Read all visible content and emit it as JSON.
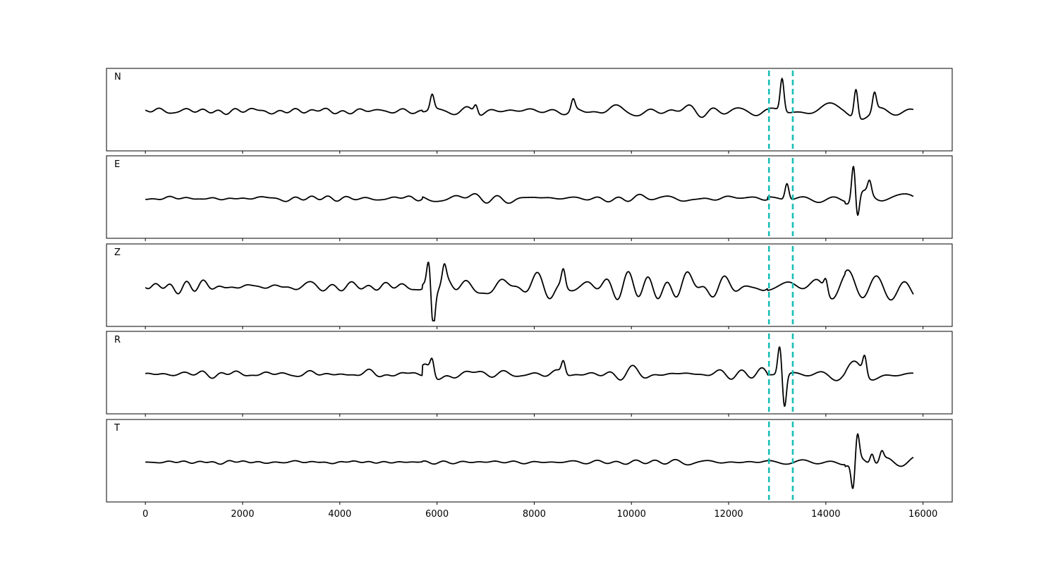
{
  "chart_data": {
    "type": "line",
    "panels": [
      {
        "label": "N",
        "burst": [
          [
            5900,
            0.8
          ],
          [
            6800,
            0.5
          ],
          [
            8800,
            0.6
          ],
          [
            13100,
            1.8
          ],
          [
            14620,
            1.6
          ],
          [
            15000,
            1.0
          ]
        ],
        "amps": {
          "pre": 0.22,
          "mid": 0.42,
          "late": 0.55,
          "end": 0.75
        }
      },
      {
        "label": "E",
        "burst": [
          [
            13200,
            0.9
          ],
          [
            14570,
            2.0
          ],
          [
            14650,
            -1.3
          ],
          [
            14900,
            0.7
          ]
        ],
        "amps": {
          "pre": 0.14,
          "mid": 0.28,
          "late": 0.33,
          "end": 0.55
        }
      },
      {
        "label": "Z",
        "burst": [
          [
            5830,
            1.5
          ],
          [
            5920,
            -1.9
          ],
          [
            6150,
            0.8
          ],
          [
            8600,
            0.9
          ],
          [
            14000,
            0.7
          ]
        ],
        "amps": {
          "pre": 0.3,
          "mid": 0.65,
          "late": 0.62,
          "end": 0.72
        }
      },
      {
        "label": "R",
        "burst": [
          [
            5900,
            0.8
          ],
          [
            8600,
            0.7
          ],
          [
            13050,
            1.6
          ],
          [
            13150,
            -1.8
          ],
          [
            14800,
            1.0
          ]
        ],
        "amps": {
          "pre": 0.24,
          "mid": 0.5,
          "late": 0.55,
          "end": 0.75
        }
      },
      {
        "label": "T",
        "burst": [
          [
            14560,
            -1.6
          ],
          [
            14650,
            1.4
          ],
          [
            14950,
            0.6
          ],
          [
            15150,
            0.5
          ]
        ],
        "amps": {
          "pre": 0.08,
          "mid": 0.16,
          "late": 0.2,
          "end": 0.35
        }
      }
    ],
    "x_range": [
      0,
      15800
    ],
    "xlim": [
      -800,
      16600
    ],
    "xticks": [
      0,
      2000,
      4000,
      6000,
      8000,
      10000,
      12000,
      14000,
      16000
    ],
    "markers": [
      12830,
      13320
    ],
    "colors": {
      "trace": "#000000",
      "marker": "#17bfb5"
    },
    "grid": false
  }
}
